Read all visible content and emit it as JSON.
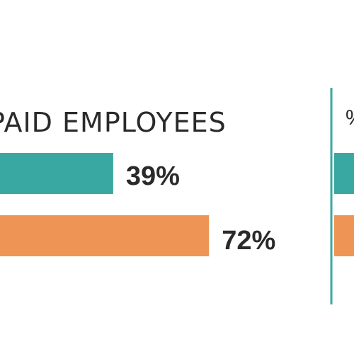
{
  "chart_data": {
    "type": "bar",
    "orientation": "horizontal",
    "groups": [
      {
        "label": "PAID EMPLOYEES",
        "bars": [
          {
            "value": 39,
            "display": "39%",
            "color": "#3aa8a2"
          },
          {
            "value": 72,
            "display": "72%",
            "color": "#ee9556"
          }
        ]
      },
      {
        "label": "%",
        "bars": [
          {
            "value": null,
            "display": "",
            "color": "#3aa8a2"
          },
          {
            "value": null,
            "display": "",
            "color": "#ee9556"
          }
        ]
      }
    ],
    "divider_color": "#3aa8a2",
    "text_color": "#2a2a2a",
    "grid": false,
    "legend": "none"
  }
}
